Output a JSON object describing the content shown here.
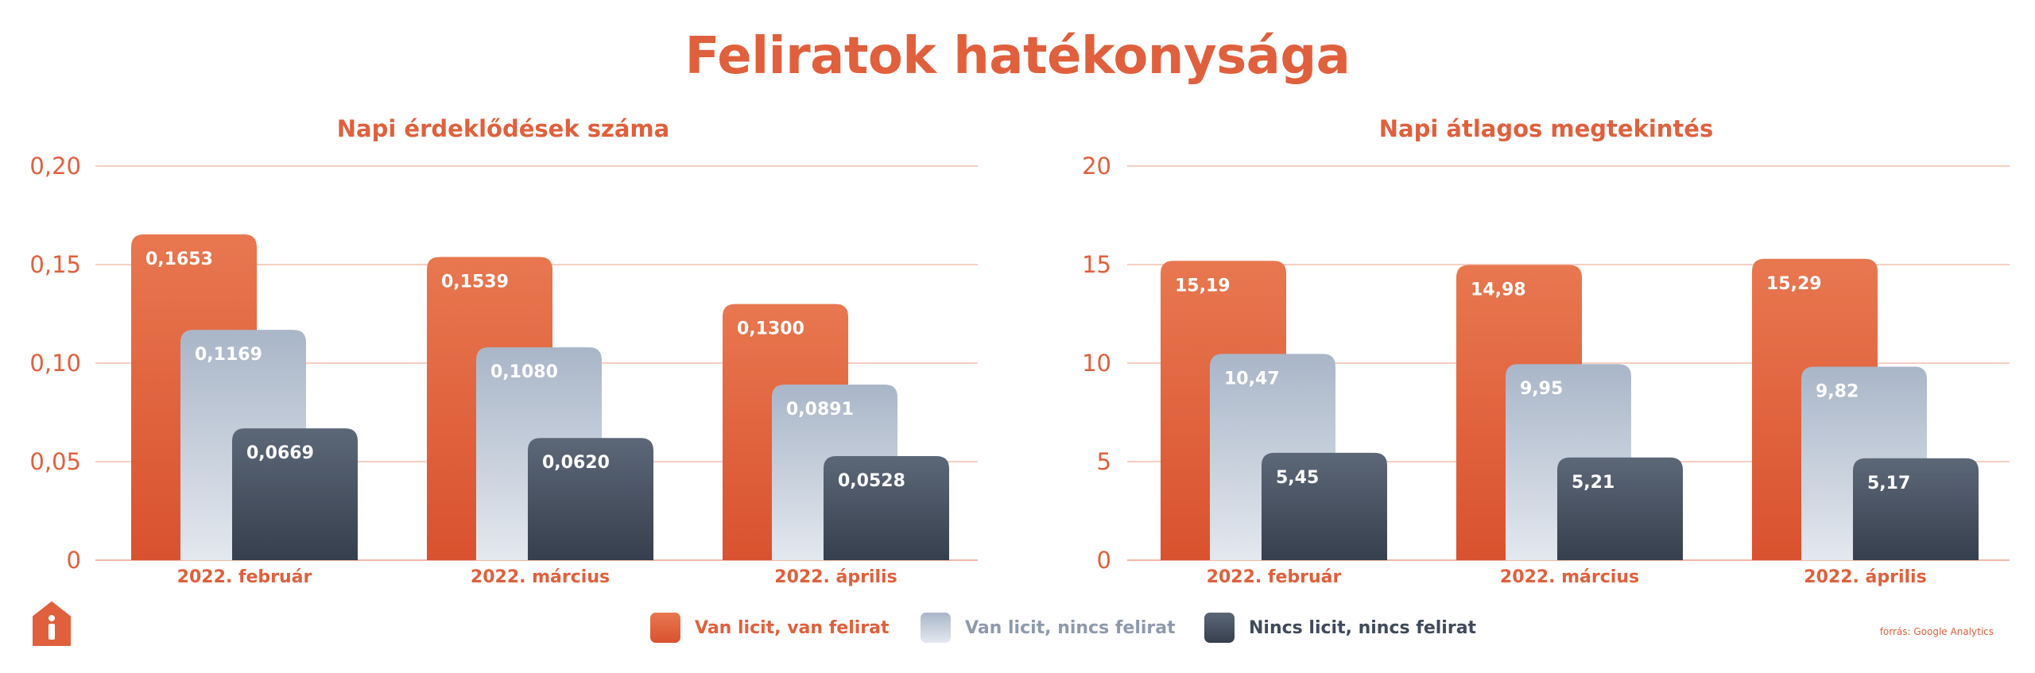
{
  "title": "Feliratok hatékonysága",
  "colors": {
    "accent": "#e0603d",
    "series": [
      "#e0603d",
      "#a9b6c8",
      "#3f4a5a"
    ]
  },
  "legend": [
    {
      "label": "Van licit, van felirat",
      "color": "#e0603d",
      "text_color": "#e0603d"
    },
    {
      "label": "Van licit, nincs felirat",
      "color": "#b6c1d0",
      "text_color": "#8e99ab"
    },
    {
      "label": "Nincs licit, nincs felirat",
      "color": "#3f4a5a",
      "text_color": "#3f4a5a"
    }
  ],
  "logo_icon": "house-info-icon",
  "source": "forrás: Google Analytics",
  "chart_data": [
    {
      "type": "bar",
      "title": "Napi érdeklődések száma",
      "categories": [
        "2022. február",
        "2022. március",
        "2022. április"
      ],
      "series": [
        {
          "name": "Van licit, van felirat",
          "values": [
            0.1653,
            0.1539,
            0.13
          ],
          "labels": [
            "0,1653",
            "0,1539",
            "0,1300"
          ]
        },
        {
          "name": "Van licit, nincs felirat",
          "values": [
            0.1169,
            0.108,
            0.0891
          ],
          "labels": [
            "0,1169",
            "0,1080",
            "0,0891"
          ]
        },
        {
          "name": "Nincs licit, nincs felirat",
          "values": [
            0.0669,
            0.062,
            0.0528
          ],
          "labels": [
            "0,0669",
            "0,0620",
            "0,0528"
          ]
        }
      ],
      "ylim": [
        0,
        0.2
      ],
      "yticks": [
        0,
        0.05,
        0.1,
        0.15,
        0.2
      ],
      "ytick_labels": [
        "0",
        "0,05",
        "0,10",
        "0,15",
        "0,20"
      ],
      "grid": true
    },
    {
      "type": "bar",
      "title": "Napi átlagos megtekintés",
      "categories": [
        "2022. február",
        "2022. március",
        "2022. április"
      ],
      "series": [
        {
          "name": "Van licit, van felirat",
          "values": [
            15.19,
            14.98,
            15.29
          ],
          "labels": [
            "15,19",
            "14,98",
            "15,29"
          ]
        },
        {
          "name": "Van licit, nincs felirat",
          "values": [
            10.47,
            9.95,
            9.82
          ],
          "labels": [
            "10,47",
            "9,95",
            "9,82"
          ]
        },
        {
          "name": "Nincs licit, nincs felirat",
          "values": [
            5.45,
            5.21,
            5.17
          ],
          "labels": [
            "5,45",
            "5,21",
            "5,17"
          ]
        }
      ],
      "ylim": [
        0,
        20
      ],
      "yticks": [
        0,
        5,
        10,
        15,
        20
      ],
      "ytick_labels": [
        "0",
        "5",
        "10",
        "15",
        "20"
      ],
      "grid": true
    }
  ]
}
